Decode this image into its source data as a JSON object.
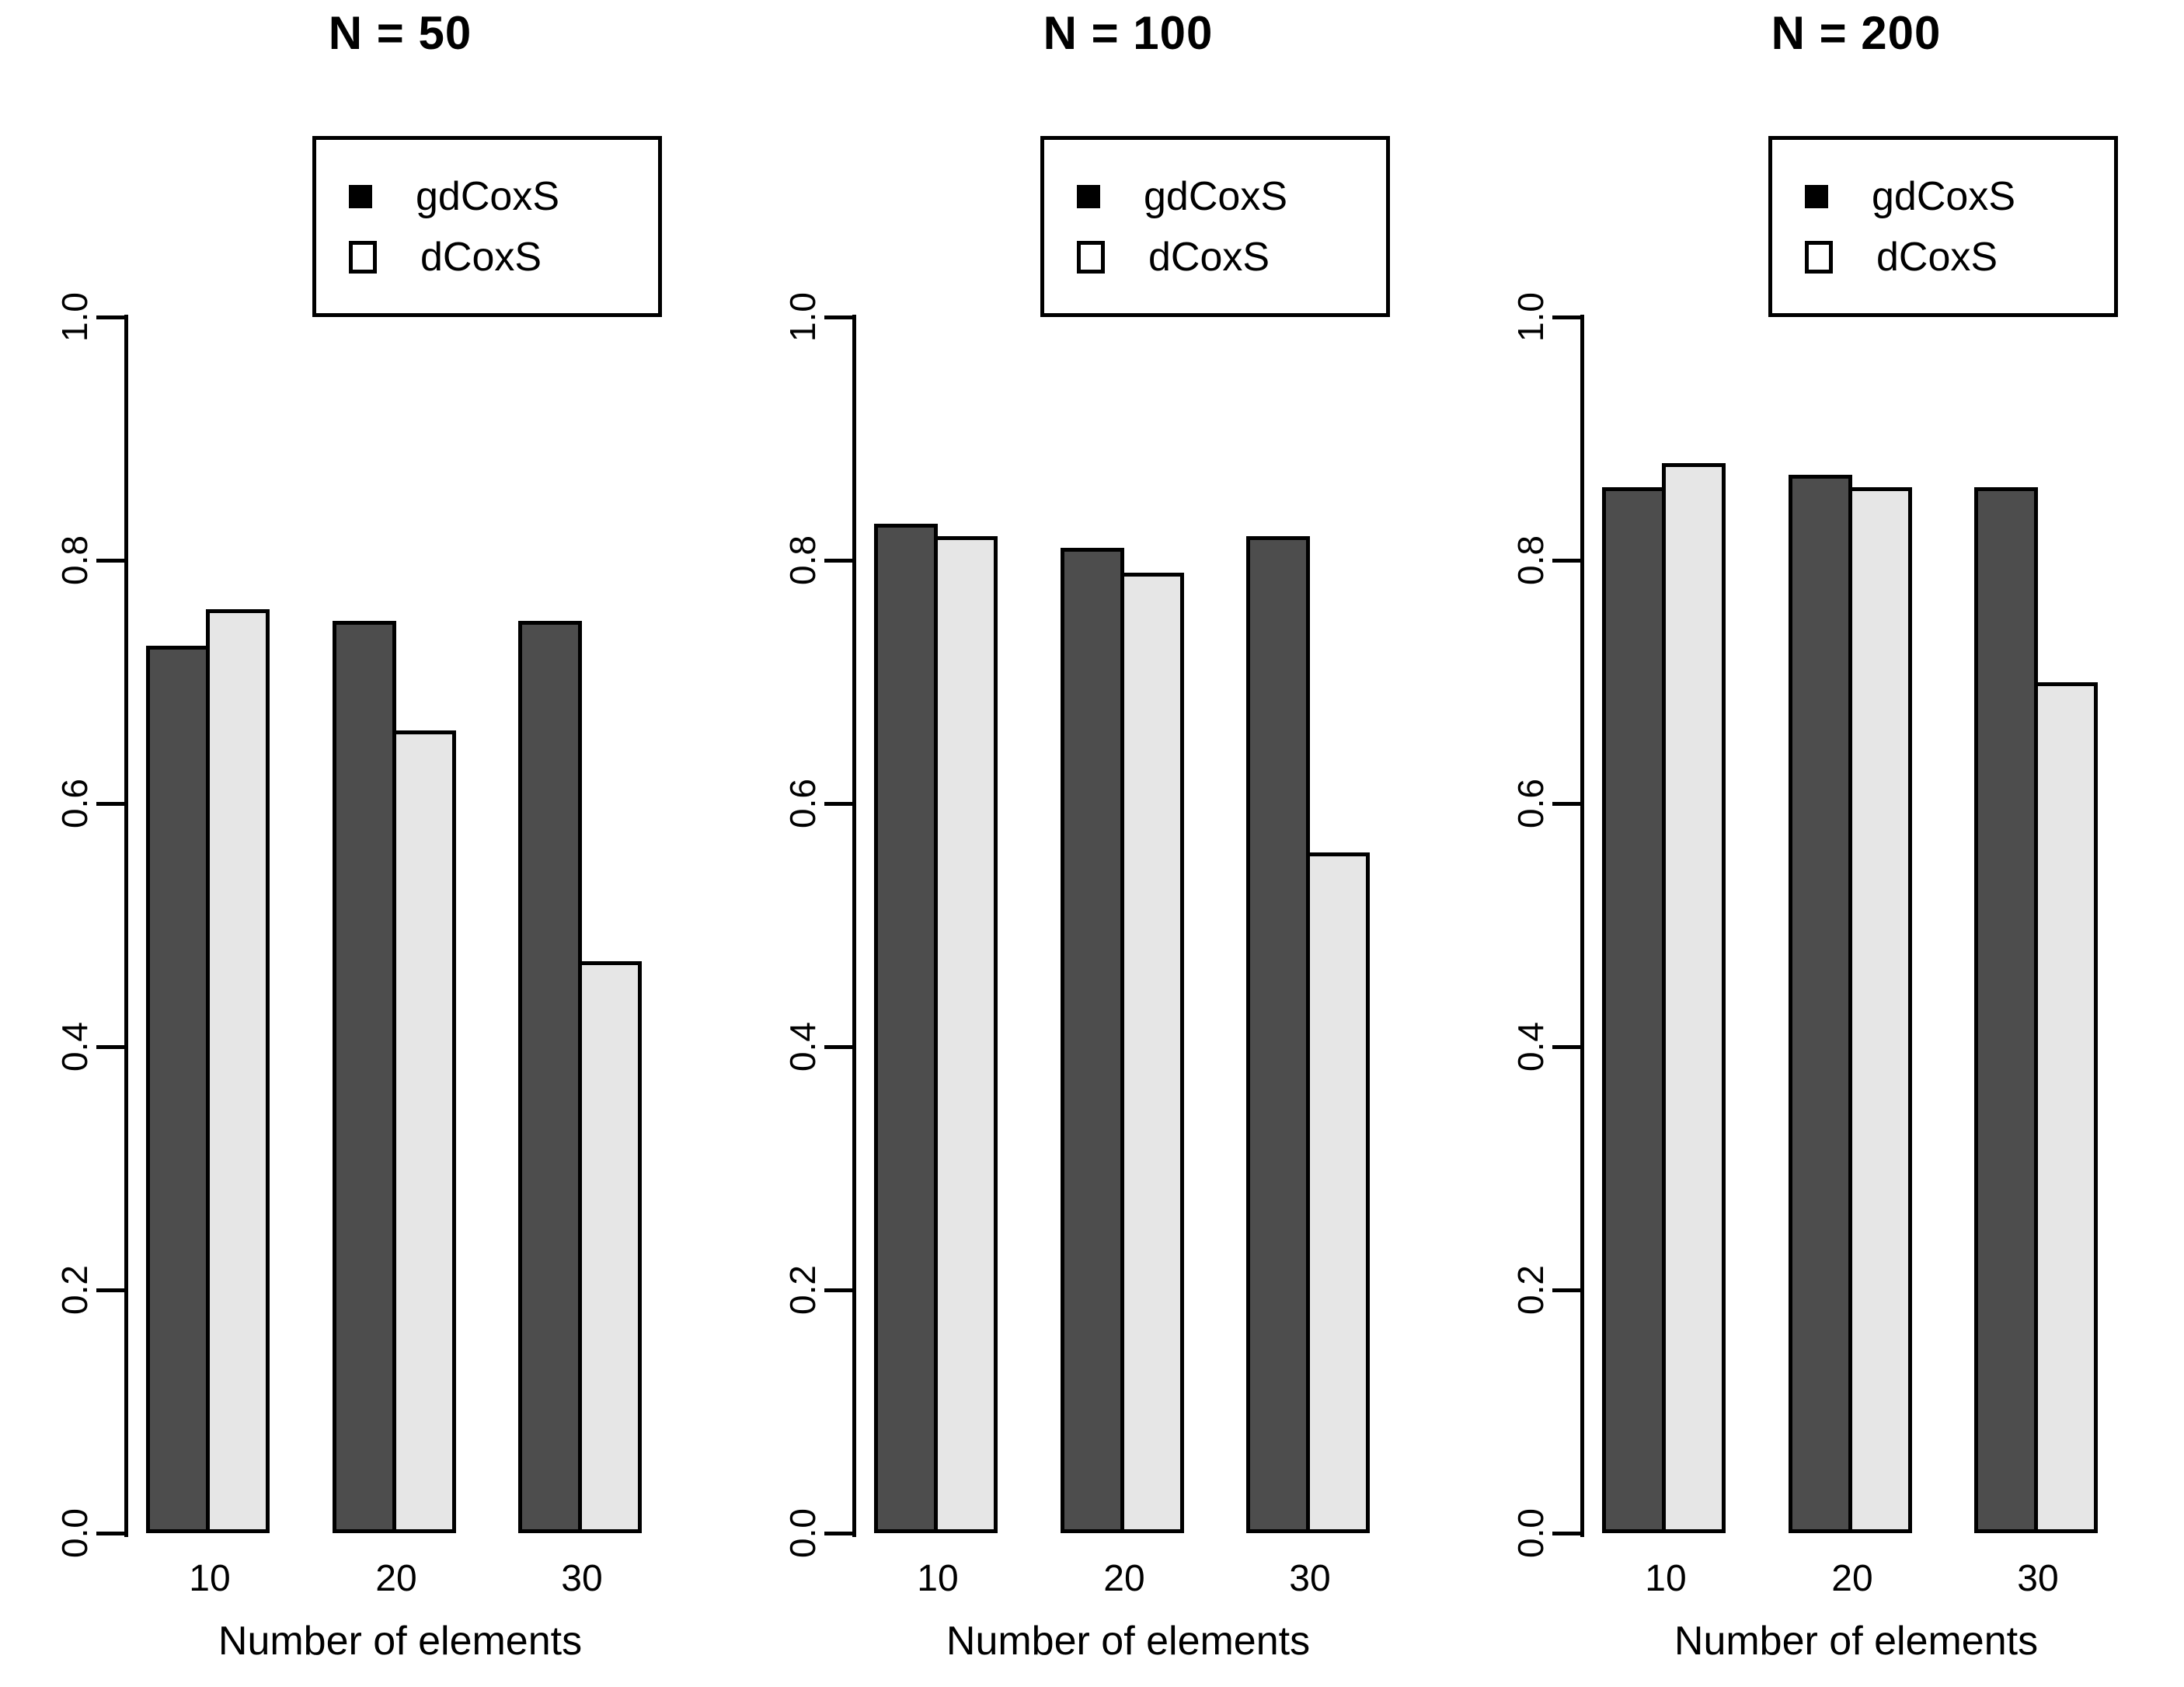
{
  "figure": {
    "background": "#ffffff",
    "text_color": "#000000"
  },
  "chart_data": [
    {
      "type": "bar",
      "title": "N = 50",
      "categories": [
        "10",
        "20",
        "30"
      ],
      "series": [
        {
          "name": "gdCoxS",
          "color": "#4D4D4D",
          "values": [
            0.73,
            0.75,
            0.75
          ]
        },
        {
          "name": "dCoxS",
          "color": "#E6E6E6",
          "values": [
            0.76,
            0.66,
            0.47
          ]
        }
      ],
      "xlabel": "Number of elements",
      "ylabel": "",
      "ylim": [
        0.0,
        1.0
      ],
      "ytick_values": [
        0.0,
        0.2,
        0.4,
        0.6,
        0.8,
        1.0
      ],
      "ytick_labels": [
        "0.0",
        "0.2",
        "0.4",
        "0.6",
        "0.8",
        "1.0"
      ],
      "bar_border_color": "#000000",
      "grid": false,
      "legend_position": "top-inside"
    },
    {
      "type": "bar",
      "title": "N = 100",
      "categories": [
        "10",
        "20",
        "30"
      ],
      "series": [
        {
          "name": "gdCoxS",
          "color": "#4D4D4D",
          "values": [
            0.83,
            0.81,
            0.82
          ]
        },
        {
          "name": "dCoxS",
          "color": "#E6E6E6",
          "values": [
            0.82,
            0.79,
            0.56
          ]
        }
      ],
      "xlabel": "Number of elements",
      "ylabel": "",
      "ylim": [
        0.0,
        1.0
      ],
      "ytick_values": [
        0.0,
        0.2,
        0.4,
        0.6,
        0.8,
        1.0
      ],
      "ytick_labels": [
        "0.0",
        "0.2",
        "0.4",
        "0.6",
        "0.8",
        "1.0"
      ],
      "bar_border_color": "#000000",
      "grid": false,
      "legend_position": "top-inside"
    },
    {
      "type": "bar",
      "title": "N = 200",
      "categories": [
        "10",
        "20",
        "30"
      ],
      "series": [
        {
          "name": "gdCoxS",
          "color": "#4D4D4D",
          "values": [
            0.86,
            0.87,
            0.86
          ]
        },
        {
          "name": "dCoxS",
          "color": "#E6E6E6",
          "values": [
            0.88,
            0.86,
            0.7
          ]
        }
      ],
      "xlabel": "Number of elements",
      "ylabel": "",
      "ylim": [
        0.0,
        1.0
      ],
      "ytick_values": [
        0.0,
        0.2,
        0.4,
        0.6,
        0.8,
        1.0
      ],
      "ytick_labels": [
        "0.0",
        "0.2",
        "0.4",
        "0.6",
        "0.8",
        "1.0"
      ],
      "bar_border_color": "#000000",
      "grid": false,
      "legend_position": "top-inside"
    }
  ]
}
